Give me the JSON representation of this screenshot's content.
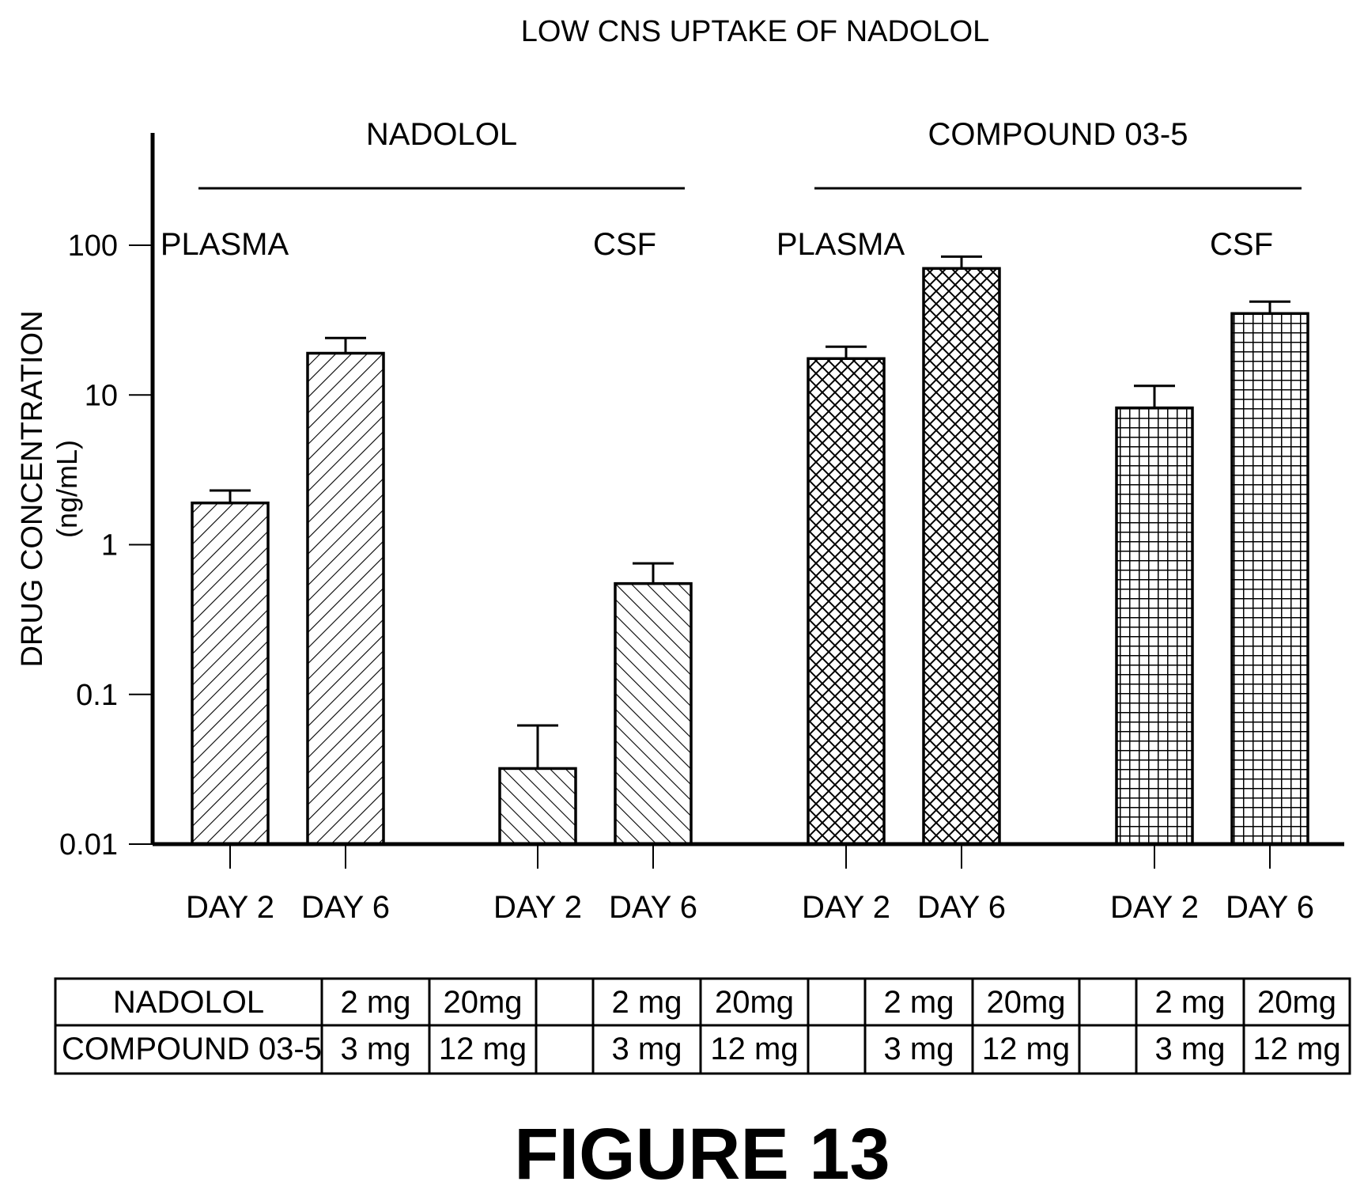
{
  "chart_data": {
    "type": "bar",
    "title": "LOW CNS UPTAKE OF NADOLOL",
    "ylabel": "DRUG CONCENTRATION",
    "ylabel_unit": "(ng/mL)",
    "yscale": "log",
    "ylim": [
      0.01,
      100
    ],
    "yticks": [
      "0.01",
      "0.1",
      "1",
      "10",
      "100"
    ],
    "groups": [
      {
        "name": "NADOLOL",
        "subgroups": [
          {
            "name": "PLASMA",
            "bars": [
              {
                "label": "DAY 2",
                "value": 1.9,
                "error": 2.3,
                "pattern": "diag-back"
              },
              {
                "label": "DAY 6",
                "value": 19,
                "error": 24,
                "pattern": "diag-back"
              }
            ]
          },
          {
            "name": "CSF",
            "bars": [
              {
                "label": "DAY 2",
                "value": 0.032,
                "error": 0.062,
                "pattern": "diag-fwd"
              },
              {
                "label": "DAY 6",
                "value": 0.55,
                "error": 0.75,
                "pattern": "diag-fwd"
              }
            ]
          }
        ]
      },
      {
        "name": "COMPOUND 03-5",
        "subgroups": [
          {
            "name": "PLASMA",
            "bars": [
              {
                "label": "DAY 2",
                "value": 17.5,
                "error": 21,
                "pattern": "crosshatch"
              },
              {
                "label": "DAY 6",
                "value": 70,
                "error": 84,
                "pattern": "crosshatch"
              }
            ]
          },
          {
            "name": "CSF",
            "bars": [
              {
                "label": "DAY 2",
                "value": 8.2,
                "error": 11.5,
                "pattern": "grid"
              },
              {
                "label": "DAY 6",
                "value": 35,
                "error": 42,
                "pattern": "grid"
              }
            ]
          }
        ]
      }
    ]
  },
  "dose_table": {
    "rows": [
      {
        "label": "NADOLOL",
        "cells": [
          "2 mg",
          "20mg",
          "",
          "2 mg",
          "20mg",
          "",
          "2 mg",
          "20mg",
          "",
          "2 mg",
          "20mg"
        ]
      },
      {
        "label": "COMPOUND 03-5",
        "cells": [
          "3 mg",
          "12 mg",
          "",
          "3 mg",
          "12 mg",
          "",
          "3 mg",
          "12 mg",
          "",
          "3 mg",
          "12 mg"
        ]
      }
    ]
  },
  "caption": "FIGURE 13",
  "colors": {
    "ink": "#000000",
    "background": "#ffffff"
  }
}
